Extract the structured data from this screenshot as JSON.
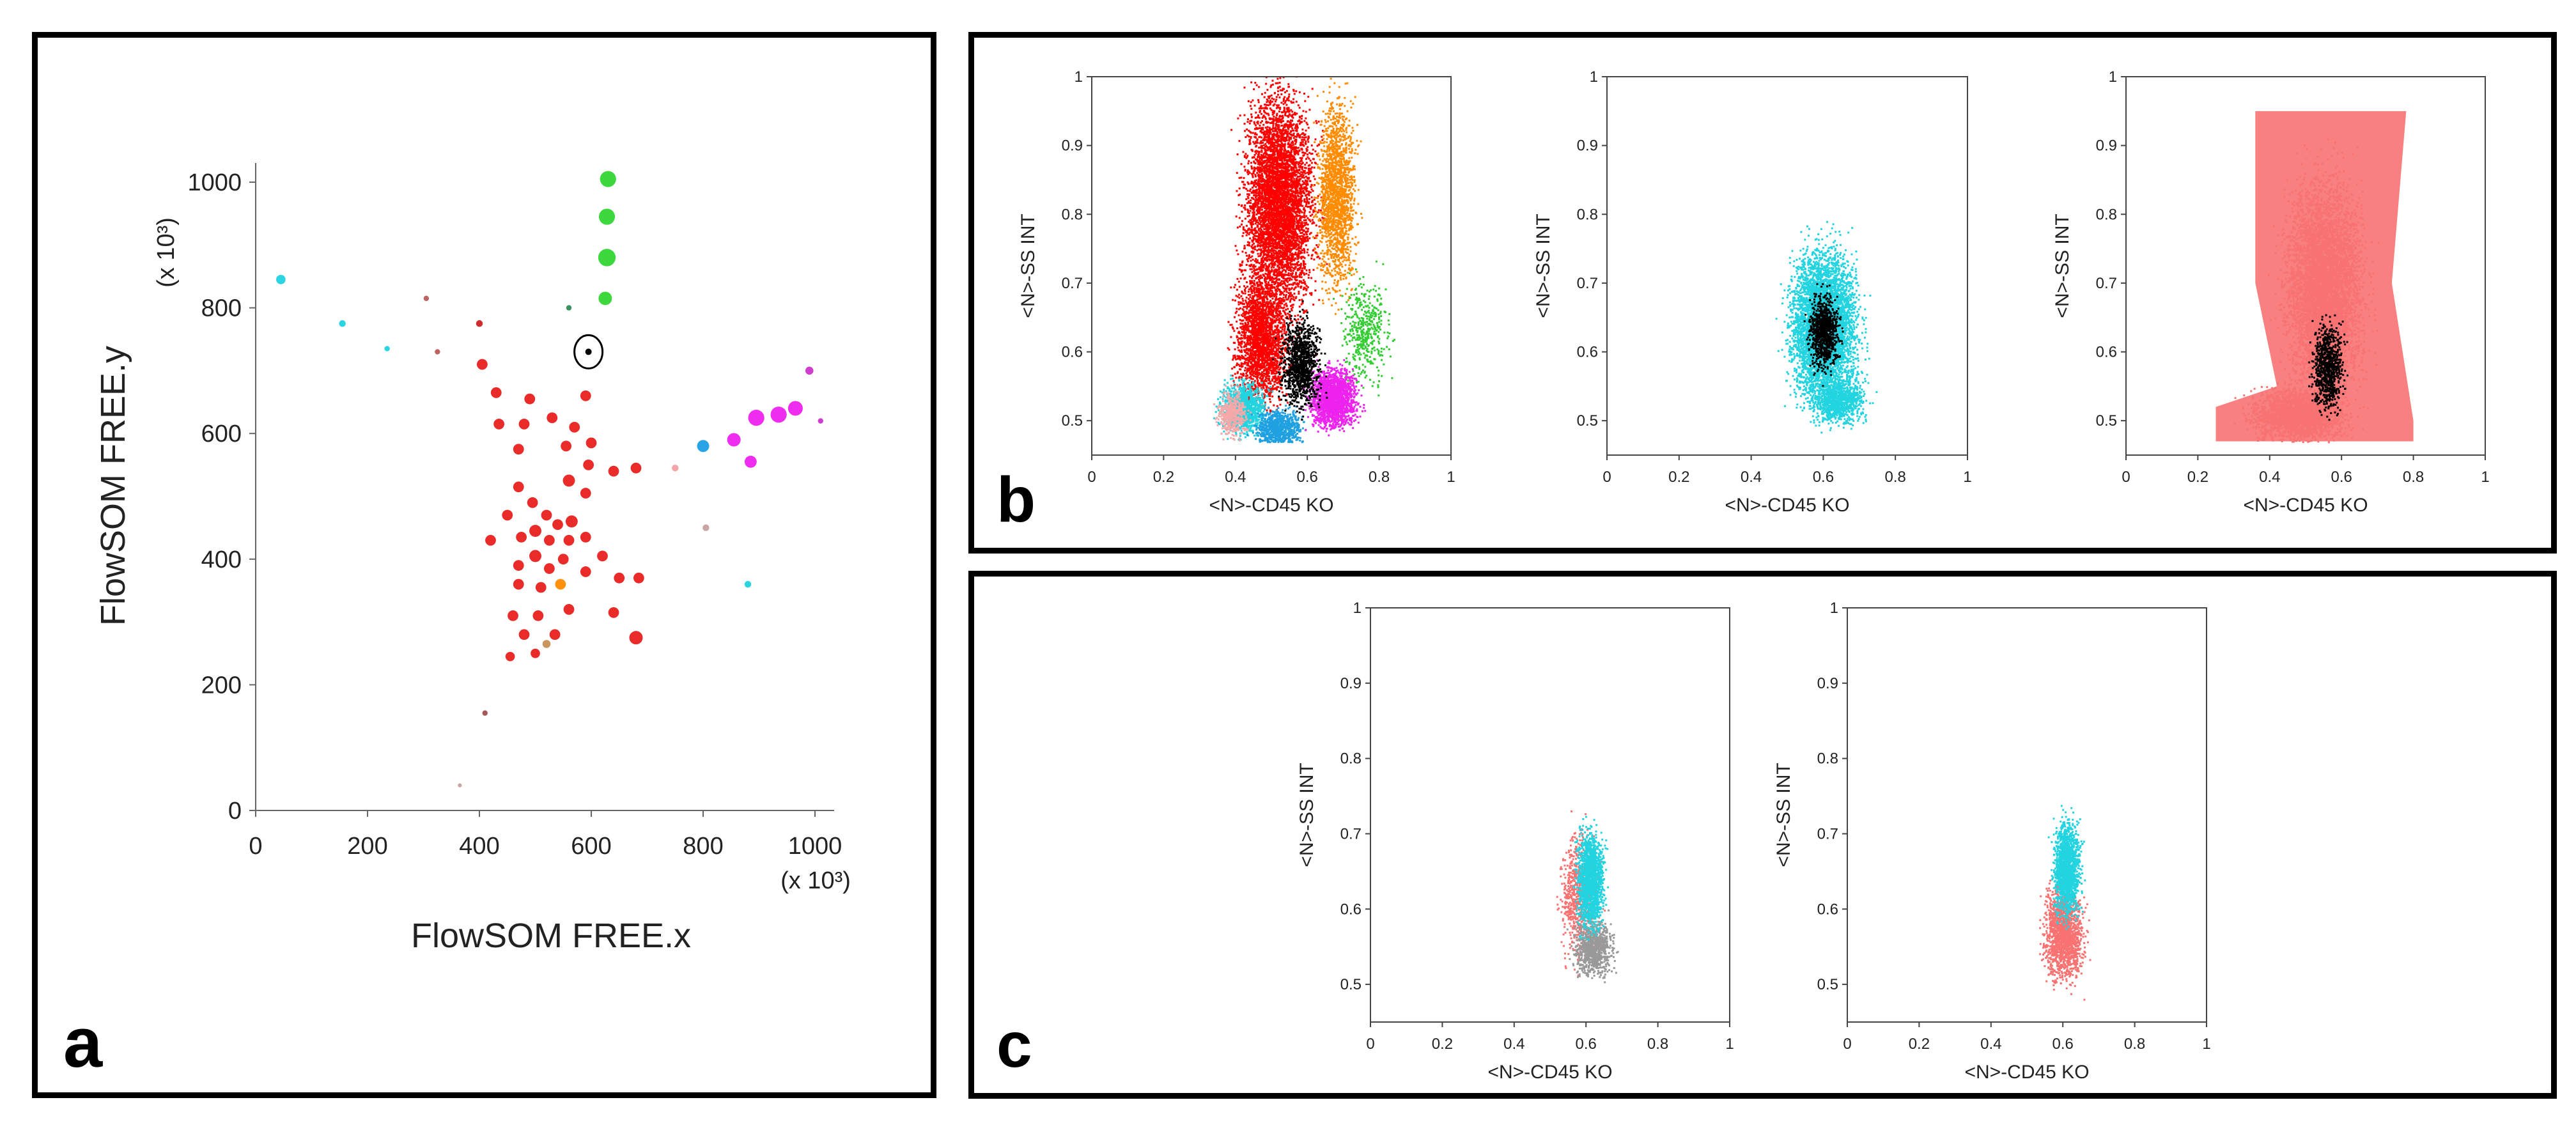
{
  "panel_labels": {
    "a": "a",
    "b": "b",
    "c": "c"
  },
  "chart_data": [
    {
      "id": "a",
      "type": "scatter",
      "title": "",
      "xlabel": "FlowSOM FREE.x",
      "ylabel": "FlowSOM FREE.y",
      "x_multiplier_label": "(x 10³)",
      "y_multiplier_label": "(x 10³)",
      "xlim": [
        0,
        1000
      ],
      "ylim": [
        0,
        1000
      ],
      "xticks": [
        "0",
        "200",
        "400",
        "600",
        "800",
        "1000"
      ],
      "yticks": [
        "0",
        "200",
        "400",
        "600",
        "800",
        "1000"
      ],
      "grid": false,
      "points": [
        {
          "x": 630,
          "y": 1005,
          "s": 1.2,
          "c": "#33d633"
        },
        {
          "x": 628,
          "y": 945,
          "s": 1.2,
          "c": "#33d633"
        },
        {
          "x": 628,
          "y": 880,
          "s": 1.3,
          "c": "#33d633"
        },
        {
          "x": 625,
          "y": 815,
          "s": 1.0,
          "c": "#33d633"
        },
        {
          "x": 560,
          "y": 800,
          "s": 0.4,
          "c": "#2e8b57"
        },
        {
          "x": 45,
          "y": 845,
          "s": 0.7,
          "c": "#22d3e0"
        },
        {
          "x": 155,
          "y": 775,
          "s": 0.5,
          "c": "#22d3e0"
        },
        {
          "x": 235,
          "y": 735,
          "s": 0.4,
          "c": "#22d3e0"
        },
        {
          "x": 305,
          "y": 815,
          "s": 0.4,
          "c": "#b85c5c"
        },
        {
          "x": 325,
          "y": 730,
          "s": 0.4,
          "c": "#b85c5c"
        },
        {
          "x": 400,
          "y": 775,
          "s": 0.5,
          "c": "#cc2222"
        },
        {
          "x": 405,
          "y": 710,
          "s": 0.8,
          "c": "#e8211f"
        },
        {
          "x": 430,
          "y": 665,
          "s": 0.8,
          "c": "#e8211f"
        },
        {
          "x": 435,
          "y": 615,
          "s": 0.8,
          "c": "#e8211f"
        },
        {
          "x": 470,
          "y": 575,
          "s": 0.8,
          "c": "#e8211f"
        },
        {
          "x": 480,
          "y": 615,
          "s": 0.8,
          "c": "#e8211f"
        },
        {
          "x": 490,
          "y": 655,
          "s": 0.8,
          "c": "#e8211f"
        },
        {
          "x": 530,
          "y": 625,
          "s": 0.8,
          "c": "#e8211f"
        },
        {
          "x": 555,
          "y": 580,
          "s": 0.8,
          "c": "#e8211f"
        },
        {
          "x": 570,
          "y": 610,
          "s": 0.8,
          "c": "#e8211f"
        },
        {
          "x": 590,
          "y": 660,
          "s": 0.8,
          "c": "#e8211f"
        },
        {
          "x": 600,
          "y": 585,
          "s": 0.8,
          "c": "#e8211f"
        },
        {
          "x": 595,
          "y": 550,
          "s": 0.8,
          "c": "#e8211f"
        },
        {
          "x": 640,
          "y": 540,
          "s": 0.8,
          "c": "#e8211f"
        },
        {
          "x": 680,
          "y": 545,
          "s": 0.8,
          "c": "#e8211f"
        },
        {
          "x": 560,
          "y": 525,
          "s": 0.9,
          "c": "#e8211f"
        },
        {
          "x": 590,
          "y": 505,
          "s": 0.8,
          "c": "#e8211f"
        },
        {
          "x": 470,
          "y": 515,
          "s": 0.8,
          "c": "#e8211f"
        },
        {
          "x": 495,
          "y": 490,
          "s": 0.8,
          "c": "#e8211f"
        },
        {
          "x": 450,
          "y": 470,
          "s": 0.8,
          "c": "#e8211f"
        },
        {
          "x": 520,
          "y": 470,
          "s": 0.8,
          "c": "#e8211f"
        },
        {
          "x": 540,
          "y": 455,
          "s": 0.8,
          "c": "#e8211f"
        },
        {
          "x": 565,
          "y": 460,
          "s": 0.9,
          "c": "#e8211f"
        },
        {
          "x": 500,
          "y": 445,
          "s": 0.9,
          "c": "#e8211f"
        },
        {
          "x": 475,
          "y": 435,
          "s": 0.8,
          "c": "#e8211f"
        },
        {
          "x": 420,
          "y": 430,
          "s": 0.8,
          "c": "#e8211f"
        },
        {
          "x": 525,
          "y": 430,
          "s": 0.8,
          "c": "#e8211f"
        },
        {
          "x": 560,
          "y": 430,
          "s": 0.8,
          "c": "#e8211f"
        },
        {
          "x": 590,
          "y": 435,
          "s": 0.8,
          "c": "#e8211f"
        },
        {
          "x": 500,
          "y": 405,
          "s": 0.9,
          "c": "#e8211f"
        },
        {
          "x": 550,
          "y": 400,
          "s": 0.8,
          "c": "#e8211f"
        },
        {
          "x": 620,
          "y": 405,
          "s": 0.8,
          "c": "#e8211f"
        },
        {
          "x": 470,
          "y": 390,
          "s": 0.8,
          "c": "#e8211f"
        },
        {
          "x": 525,
          "y": 385,
          "s": 0.8,
          "c": "#e8211f"
        },
        {
          "x": 590,
          "y": 380,
          "s": 0.8,
          "c": "#e8211f"
        },
        {
          "x": 470,
          "y": 360,
          "s": 0.8,
          "c": "#e8211f"
        },
        {
          "x": 510,
          "y": 355,
          "s": 0.8,
          "c": "#e8211f"
        },
        {
          "x": 650,
          "y": 370,
          "s": 0.8,
          "c": "#e8211f"
        },
        {
          "x": 685,
          "y": 370,
          "s": 0.8,
          "c": "#e8211f"
        },
        {
          "x": 545,
          "y": 360,
          "s": 0.8,
          "c": "#ff8c00"
        },
        {
          "x": 460,
          "y": 310,
          "s": 0.8,
          "c": "#e8211f"
        },
        {
          "x": 505,
          "y": 310,
          "s": 0.8,
          "c": "#e8211f"
        },
        {
          "x": 560,
          "y": 320,
          "s": 0.8,
          "c": "#e8211f"
        },
        {
          "x": 640,
          "y": 315,
          "s": 0.8,
          "c": "#e8211f"
        },
        {
          "x": 480,
          "y": 280,
          "s": 0.8,
          "c": "#e8211f"
        },
        {
          "x": 535,
          "y": 280,
          "s": 0.8,
          "c": "#e8211f"
        },
        {
          "x": 680,
          "y": 275,
          "s": 1.0,
          "c": "#e8211f"
        },
        {
          "x": 455,
          "y": 245,
          "s": 0.7,
          "c": "#e8211f"
        },
        {
          "x": 500,
          "y": 250,
          "s": 0.7,
          "c": "#e8211f"
        },
        {
          "x": 520,
          "y": 265,
          "s": 0.6,
          "c": "#c89055"
        },
        {
          "x": 410,
          "y": 155,
          "s": 0.4,
          "c": "#a05050"
        },
        {
          "x": 365,
          "y": 40,
          "s": 0.3,
          "c": "#c6a0a0"
        },
        {
          "x": 750,
          "y": 545,
          "s": 0.5,
          "c": "#f4a0a0"
        },
        {
          "x": 800,
          "y": 580,
          "s": 0.9,
          "c": "#1f9fe6"
        },
        {
          "x": 855,
          "y": 590,
          "s": 1.0,
          "c": "#ee22ee"
        },
        {
          "x": 885,
          "y": 555,
          "s": 0.9,
          "c": "#ee22ee"
        },
        {
          "x": 895,
          "y": 625,
          "s": 1.2,
          "c": "#ee22ee"
        },
        {
          "x": 935,
          "y": 630,
          "s": 1.2,
          "c": "#ee22ee"
        },
        {
          "x": 965,
          "y": 640,
          "s": 1.1,
          "c": "#ee22ee"
        },
        {
          "x": 990,
          "y": 700,
          "s": 0.6,
          "c": "#cc33cc"
        },
        {
          "x": 1010,
          "y": 620,
          "s": 0.4,
          "c": "#cc33cc"
        },
        {
          "x": 805,
          "y": 450,
          "s": 0.5,
          "c": "#c6a0a0"
        },
        {
          "x": 880,
          "y": 360,
          "s": 0.5,
          "c": "#22d3e0"
        }
      ],
      "highlight": {
        "x": 595,
        "y": 730
      }
    },
    {
      "id": "b1",
      "type": "scatter",
      "title": "",
      "xlabel": "<N>-CD45 KO",
      "ylabel": "<N>-SS INT",
      "xlim": [
        0,
        1
      ],
      "ylim": [
        0.45,
        1
      ],
      "xticks": [
        "0",
        "0.2",
        "0.4",
        "0.6",
        "0.8",
        "1"
      ],
      "yticks": [
        "0.5",
        "0.6",
        "0.7",
        "0.8",
        "0.9",
        "1"
      ],
      "point_colors": [
        "#ff0000",
        "#ff8c00",
        "#ee22ee",
        "#22d3e0",
        "#1fa0e0",
        "#f7a8a8",
        "#33cc33",
        "#000000"
      ]
    },
    {
      "id": "b2",
      "type": "scatter",
      "title": "",
      "xlabel": "<N>-CD45 KO",
      "ylabel": "<N>-SS INT",
      "xlim": [
        0,
        1
      ],
      "ylim": [
        0.45,
        1
      ],
      "xticks": [
        "0",
        "0.2",
        "0.4",
        "0.6",
        "0.8",
        "1"
      ],
      "yticks": [
        "0.5",
        "0.6",
        "0.7",
        "0.8",
        "0.9",
        "1"
      ],
      "point_colors": [
        "#22d3e0",
        "#000000"
      ]
    },
    {
      "id": "b3",
      "type": "scatter",
      "title": "",
      "xlabel": "<N>-CD45 KO",
      "ylabel": "<N>-SS INT",
      "xlim": [
        0,
        1
      ],
      "ylim": [
        0.45,
        1
      ],
      "xticks": [
        "0",
        "0.2",
        "0.4",
        "0.6",
        "0.8",
        "1"
      ],
      "yticks": [
        "0.5",
        "0.6",
        "0.7",
        "0.8",
        "0.9",
        "1"
      ],
      "point_colors": [
        "#f87272",
        "#000000"
      ]
    },
    {
      "id": "c1",
      "type": "scatter",
      "title": "",
      "xlabel": "<N>-CD45 KO",
      "ylabel": "<N>-SS INT",
      "xlim": [
        0,
        1
      ],
      "ylim": [
        0.45,
        1
      ],
      "xticks": [
        "0",
        "0.2",
        "0.4",
        "0.6",
        "0.8",
        "1"
      ],
      "yticks": [
        "0.5",
        "0.6",
        "0.7",
        "0.8",
        "0.9",
        "1"
      ],
      "point_colors": [
        "#f87272",
        "#22d3e0",
        "#999999"
      ]
    },
    {
      "id": "c2",
      "type": "scatter",
      "title": "",
      "xlabel": "<N>-CD45 KO",
      "ylabel": "<N>-SS INT",
      "xlim": [
        0,
        1
      ],
      "ylim": [
        0.45,
        1
      ],
      "xticks": [
        "0",
        "0.2",
        "0.4",
        "0.6",
        "0.8",
        "1"
      ],
      "yticks": [
        "0.5",
        "0.6",
        "0.7",
        "0.8",
        "0.9",
        "1"
      ],
      "point_colors": [
        "#f87272",
        "#22d3e0"
      ]
    }
  ]
}
